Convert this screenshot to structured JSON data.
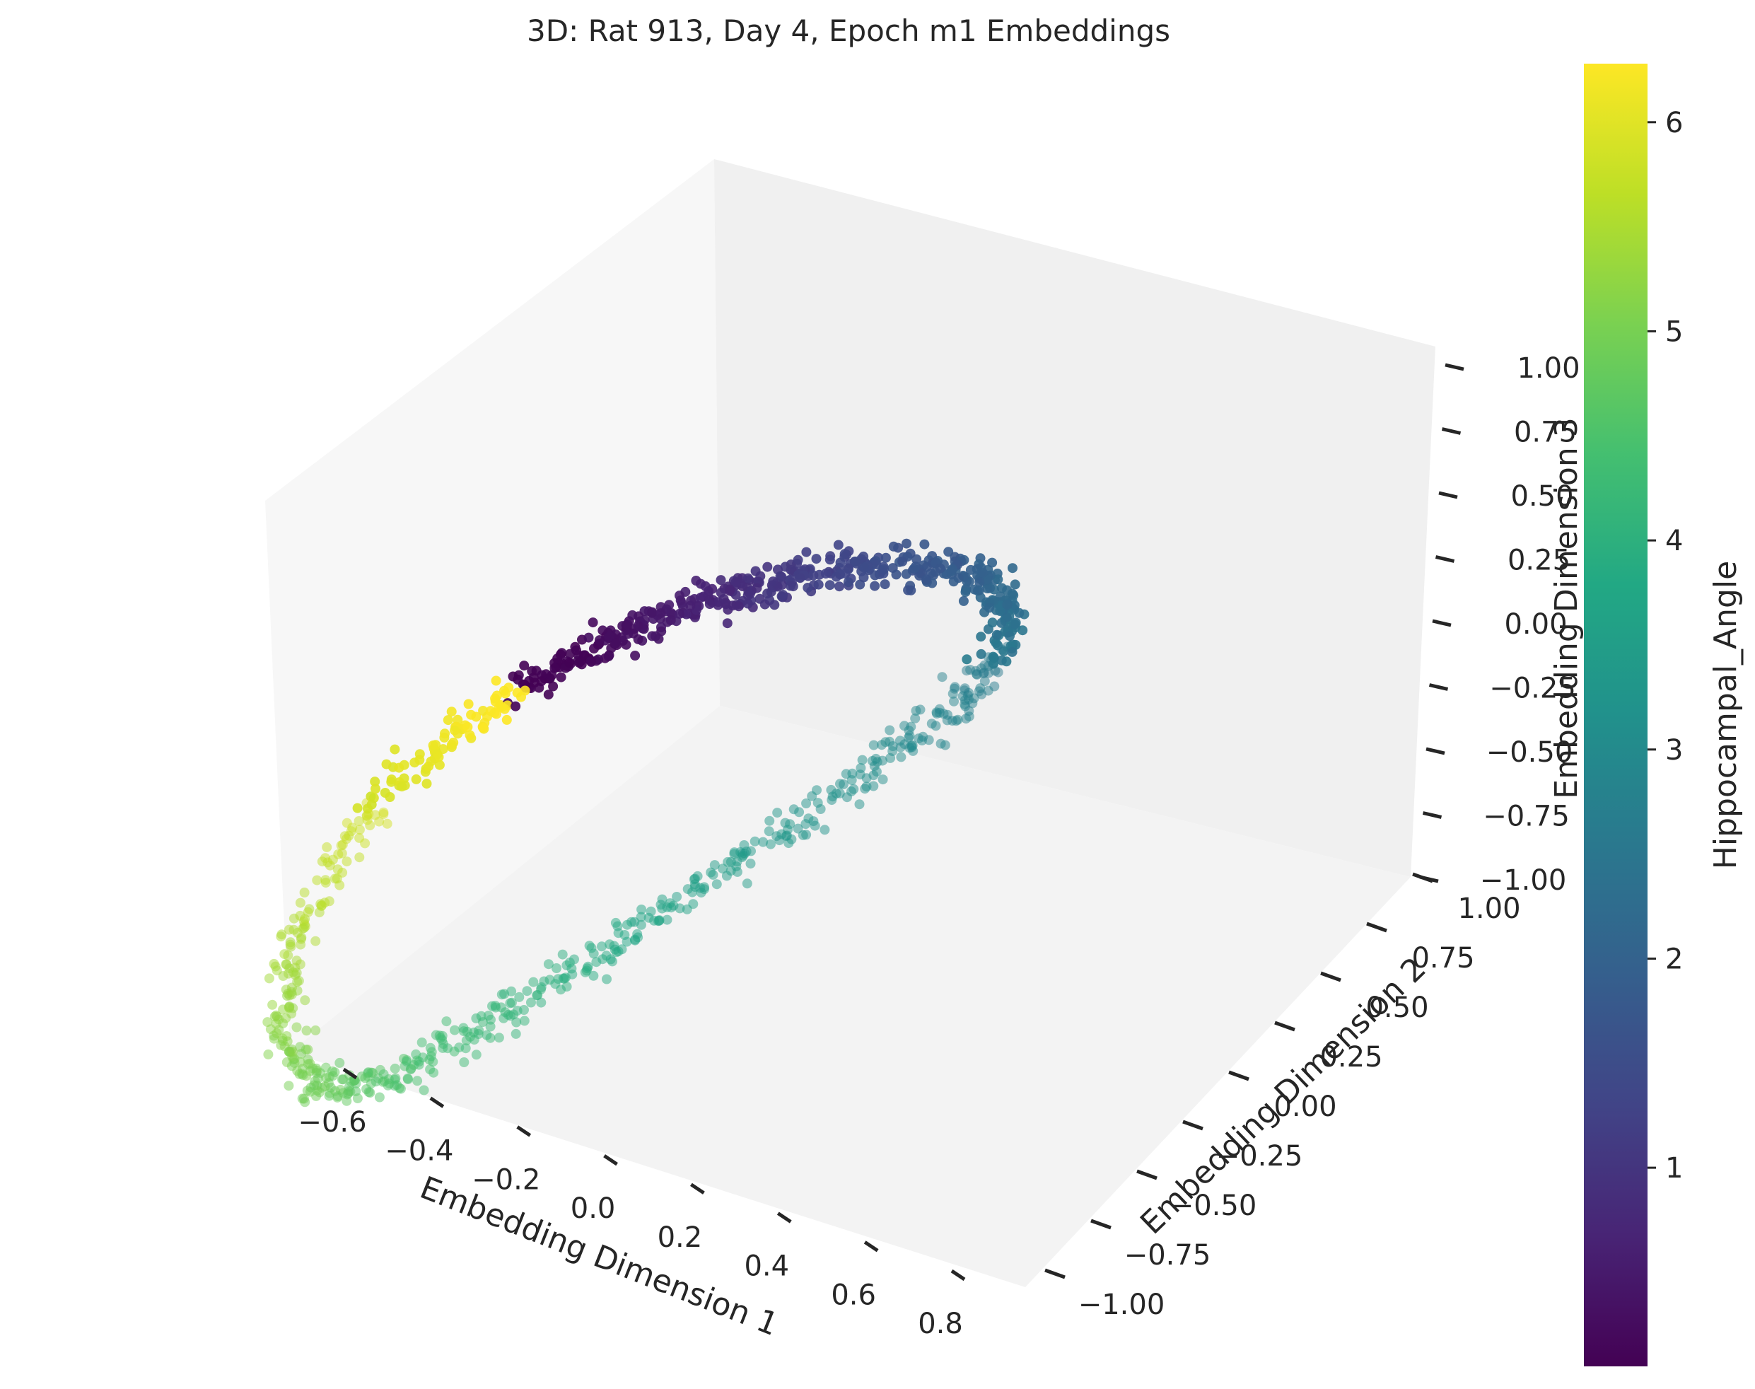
{
  "chart_data": {
    "type": "scatter3d",
    "title": "3D: Rat 913, Day 4, Epoch m1 Embeddings",
    "xlabel": "Embedding Dimension 1",
    "ylabel": "Embedding Dimension 2",
    "zlabel": "Embedding Dimension 3",
    "x_ticks": [
      "−0.6",
      "−0.4",
      "−0.2",
      "0.0",
      "0.2",
      "0.4",
      "0.6",
      "0.8"
    ],
    "y_ticks": [
      "−1.00",
      "−0.75",
      "−0.50",
      "−0.25",
      "0.00",
      "0.25",
      "0.50",
      "0.75",
      "1.00"
    ],
    "z_ticks": [
      "−1.00",
      "−0.75",
      "−0.50",
      "−0.25",
      "0.00",
      "0.25",
      "0.50",
      "0.75",
      "1.00"
    ],
    "colorbar": {
      "label": "Hippocampal_Angle",
      "colormap": "viridis",
      "range": [
        0.05,
        6.28
      ],
      "ticks": [
        "1",
        "2",
        "3",
        "4",
        "5",
        "6"
      ]
    },
    "pane_color": "#f2f2f2",
    "marker_alpha_front": 0.9,
    "marker_alpha_back": 0.5,
    "structure": "closed ring; hippocampal angle increases continuously around the ring (purple → blue → teal → green → yellow → purple)",
    "points_angle_x_y_z": [
      [
        0.05,
        -0.26,
        -0.07,
        0.12
      ],
      [
        0.35,
        -0.1,
        -0.01,
        0.26
      ],
      [
        0.7,
        0.05,
        0.07,
        0.35
      ],
      [
        1.05,
        0.2,
        0.14,
        0.42
      ],
      [
        1.4,
        0.35,
        0.22,
        0.46
      ],
      [
        1.75,
        0.5,
        0.32,
        0.44
      ],
      [
        2.1,
        0.6,
        0.42,
        0.3
      ],
      [
        2.45,
        0.62,
        0.46,
        0.1
      ],
      [
        2.8,
        0.52,
        0.4,
        -0.15
      ],
      [
        3.1,
        0.35,
        0.26,
        -0.35
      ],
      [
        3.45,
        0.15,
        0.05,
        -0.55
      ],
      [
        3.8,
        -0.05,
        -0.18,
        -0.72
      ],
      [
        4.15,
        -0.22,
        -0.38,
        -0.86
      ],
      [
        4.5,
        -0.38,
        -0.55,
        -0.95
      ],
      [
        4.85,
        -0.52,
        -0.66,
        -0.95
      ],
      [
        5.2,
        -0.62,
        -0.68,
        -0.78
      ],
      [
        5.55,
        -0.64,
        -0.58,
        -0.48
      ],
      [
        5.9,
        -0.55,
        -0.4,
        -0.18
      ],
      [
        6.25,
        -0.4,
        -0.22,
        0.02
      ]
    ]
  }
}
